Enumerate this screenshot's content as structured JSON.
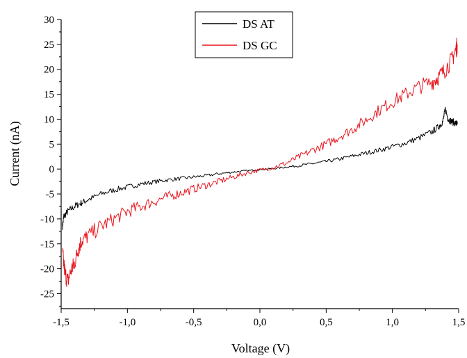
{
  "chart_data": {
    "type": "line",
    "xlabel": "Voltage (V)",
    "ylabel": "Current (nA)",
    "xlim": [
      -1.5,
      1.5
    ],
    "ylim": [
      -28,
      30
    ],
    "xticks": [
      -1.5,
      -1.0,
      -0.5,
      0.0,
      0.5,
      1.0,
      1.5
    ],
    "xtick_labels": [
      "-1,5",
      "-1,0",
      "-0,5",
      "0,0",
      "0,5",
      "1,0",
      "1,5"
    ],
    "yticks": [
      -25,
      -20,
      -15,
      -10,
      -5,
      0,
      5,
      10,
      15,
      20,
      25,
      30
    ],
    "ytick_labels": [
      "-25",
      "-20",
      "-15",
      "-10",
      "-5",
      "0",
      "5",
      "10",
      "15",
      "20",
      "25",
      "30"
    ],
    "grid": false,
    "legend_position": "top-center",
    "series": [
      {
        "name": "DS AT",
        "color": "#000000",
        "noise": 0.35,
        "points": [
          [
            -1.49,
            -11.5
          ],
          [
            -1.48,
            -9.5
          ],
          [
            -1.45,
            -8.5
          ],
          [
            -1.4,
            -7.5
          ],
          [
            -1.35,
            -6.8
          ],
          [
            -1.3,
            -6.2
          ],
          [
            -1.2,
            -5.0
          ],
          [
            -1.1,
            -4.2
          ],
          [
            -1.0,
            -3.6
          ],
          [
            -0.9,
            -3.0
          ],
          [
            -0.8,
            -2.6
          ],
          [
            -0.7,
            -2.2
          ],
          [
            -0.6,
            -1.9
          ],
          [
            -0.5,
            -1.6
          ],
          [
            -0.4,
            -1.3
          ],
          [
            -0.3,
            -0.9
          ],
          [
            -0.2,
            -0.6
          ],
          [
            -0.1,
            -0.35
          ],
          [
            0.0,
            -0.1
          ],
          [
            0.1,
            0.1
          ],
          [
            0.2,
            0.4
          ],
          [
            0.3,
            0.7
          ],
          [
            0.4,
            1.1
          ],
          [
            0.5,
            1.5
          ],
          [
            0.6,
            2.0
          ],
          [
            0.7,
            2.6
          ],
          [
            0.8,
            3.2
          ],
          [
            0.9,
            3.8
          ],
          [
            1.0,
            4.5
          ],
          [
            1.1,
            5.2
          ],
          [
            1.2,
            6.2
          ],
          [
            1.3,
            7.5
          ],
          [
            1.35,
            8.5
          ],
          [
            1.38,
            9.5
          ],
          [
            1.4,
            12.0
          ],
          [
            1.42,
            10.0
          ],
          [
            1.45,
            9.5
          ],
          [
            1.48,
            9.2
          ],
          [
            1.49,
            9.0
          ]
        ]
      },
      {
        "name": "DS GC",
        "color": "#e8131b",
        "noise": 0.9,
        "points": [
          [
            -1.49,
            -17.0
          ],
          [
            -1.47,
            -21.0
          ],
          [
            -1.45,
            -22.5
          ],
          [
            -1.42,
            -20.0
          ],
          [
            -1.4,
            -19.0
          ],
          [
            -1.37,
            -16.0
          ],
          [
            -1.35,
            -14.5
          ],
          [
            -1.3,
            -13.5
          ],
          [
            -1.2,
            -11.5
          ],
          [
            -1.1,
            -10.0
          ],
          [
            -1.0,
            -8.5
          ],
          [
            -0.9,
            -7.5
          ],
          [
            -0.8,
            -6.5
          ],
          [
            -0.7,
            -5.6
          ],
          [
            -0.6,
            -4.8
          ],
          [
            -0.5,
            -4.0
          ],
          [
            -0.4,
            -3.2
          ],
          [
            -0.3,
            -2.4
          ],
          [
            -0.2,
            -1.6
          ],
          [
            -0.1,
            -0.8
          ],
          [
            0.0,
            -0.2
          ],
          [
            0.1,
            0.3
          ],
          [
            0.2,
            1.2
          ],
          [
            0.3,
            2.5
          ],
          [
            0.4,
            3.8
          ],
          [
            0.5,
            5.0
          ],
          [
            0.6,
            6.5
          ],
          [
            0.7,
            8.0
          ],
          [
            0.8,
            9.8
          ],
          [
            0.9,
            11.8
          ],
          [
            1.0,
            13.5
          ],
          [
            1.1,
            15.0
          ],
          [
            1.2,
            16.5
          ],
          [
            1.3,
            17.5
          ],
          [
            1.35,
            18.5
          ],
          [
            1.4,
            20.0
          ],
          [
            1.45,
            22.0
          ],
          [
            1.48,
            24.0
          ],
          [
            1.49,
            25.0
          ]
        ]
      }
    ]
  }
}
